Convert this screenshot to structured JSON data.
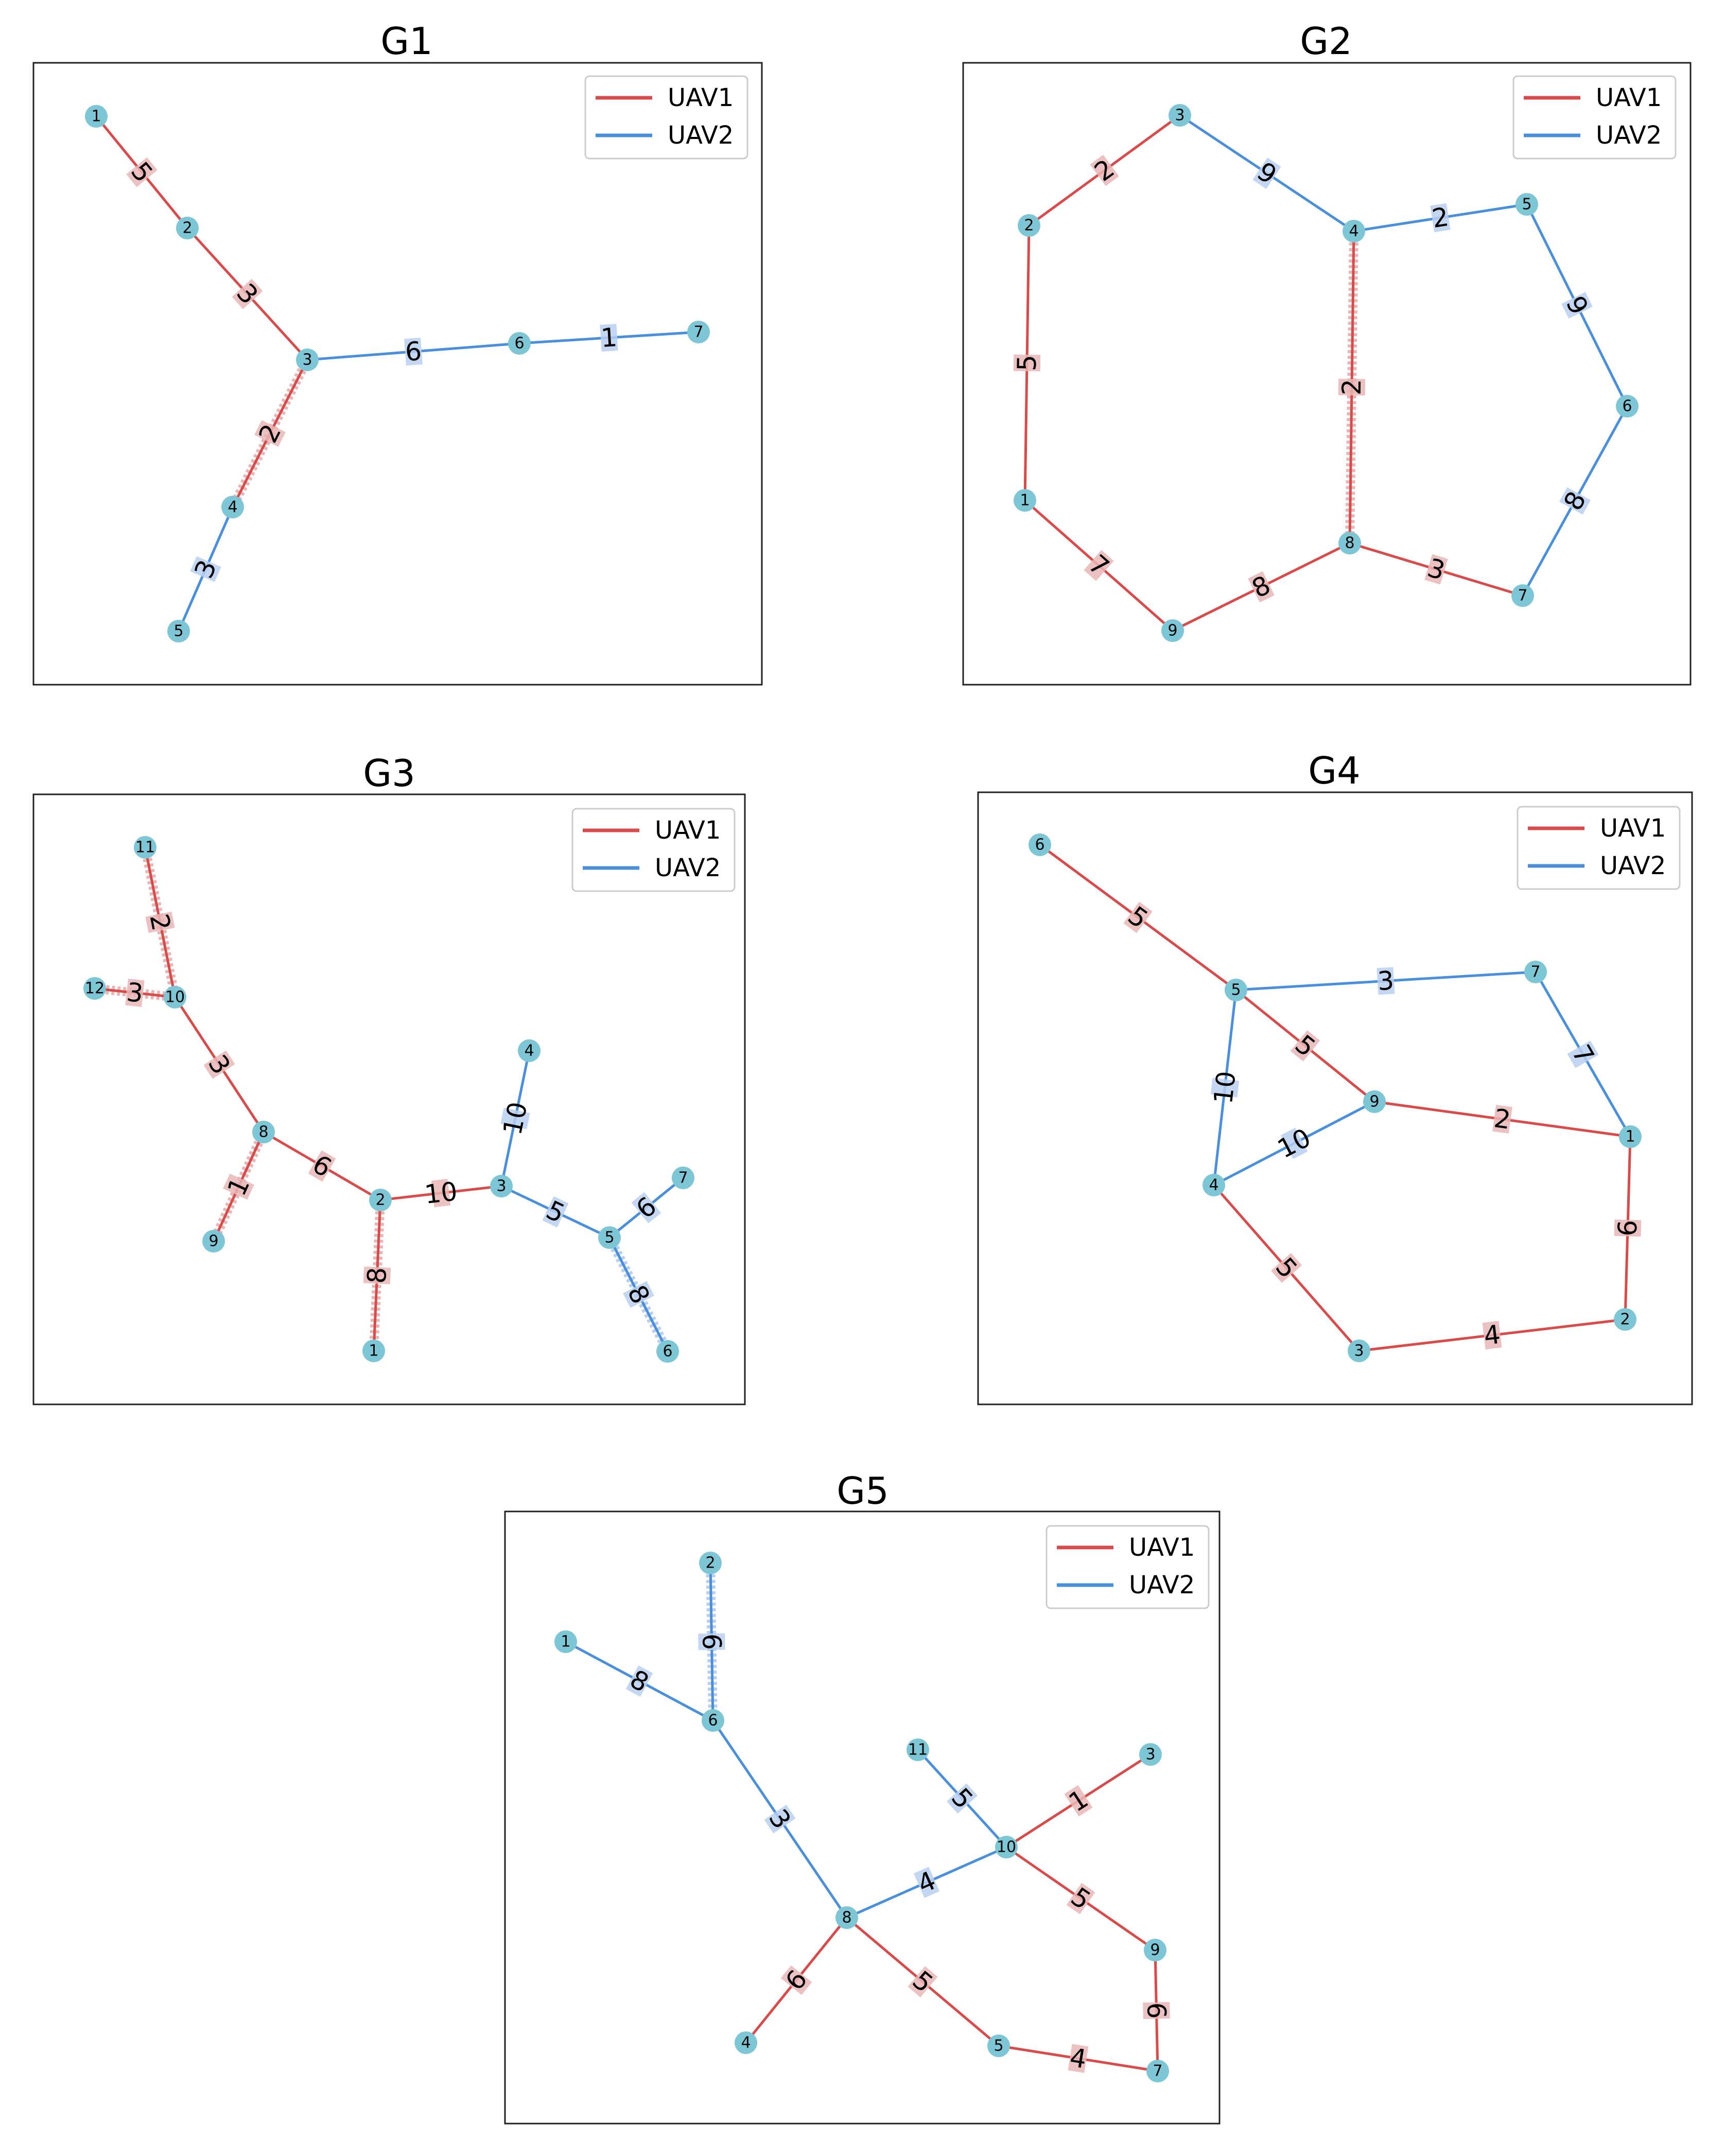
{
  "colors": {
    "uav1": "#d94b4b",
    "uav2": "#4a8fdc",
    "node": "#7cc6d6",
    "highlight_uav1": "#e9b6b6",
    "highlight_uav2": "#b8cff0"
  },
  "legend": {
    "uav1_label": "UAV1",
    "uav2_label": "UAV2"
  },
  "graphs": [
    {
      "title": "G1",
      "nodes": [
        {
          "id": "1"
        },
        {
          "id": "2"
        },
        {
          "id": "3"
        },
        {
          "id": "4"
        },
        {
          "id": "5"
        },
        {
          "id": "6"
        },
        {
          "id": "7"
        }
      ],
      "edges": [
        {
          "from": "1",
          "to": "2",
          "weight": "5",
          "uav": "uav1",
          "highlight": false
        },
        {
          "from": "2",
          "to": "3",
          "weight": "3",
          "uav": "uav1",
          "highlight": false
        },
        {
          "from": "3",
          "to": "6",
          "weight": "6",
          "uav": "uav2",
          "highlight": false
        },
        {
          "from": "6",
          "to": "7",
          "weight": "1",
          "uav": "uav2",
          "highlight": false
        },
        {
          "from": "3",
          "to": "4",
          "weight": "2",
          "uav": "uav1",
          "highlight": true
        },
        {
          "from": "4",
          "to": "5",
          "weight": "3",
          "uav": "uav2",
          "highlight": false
        }
      ]
    },
    {
      "title": "G2",
      "nodes": [
        {
          "id": "1"
        },
        {
          "id": "2"
        },
        {
          "id": "3"
        },
        {
          "id": "4"
        },
        {
          "id": "5"
        },
        {
          "id": "6"
        },
        {
          "id": "7"
        },
        {
          "id": "8"
        },
        {
          "id": "9"
        }
      ],
      "edges": [
        {
          "from": "2",
          "to": "3",
          "weight": "2",
          "uav": "uav1",
          "highlight": false
        },
        {
          "from": "3",
          "to": "4",
          "weight": "9",
          "uav": "uav2",
          "highlight": false
        },
        {
          "from": "4",
          "to": "5",
          "weight": "2",
          "uav": "uav2",
          "highlight": false
        },
        {
          "from": "5",
          "to": "6",
          "weight": "9",
          "uav": "uav2",
          "highlight": false
        },
        {
          "from": "6",
          "to": "7",
          "weight": "8",
          "uav": "uav2",
          "highlight": false
        },
        {
          "from": "2",
          "to": "1",
          "weight": "5",
          "uav": "uav1",
          "highlight": false
        },
        {
          "from": "1",
          "to": "9",
          "weight": "7",
          "uav": "uav1",
          "highlight": false
        },
        {
          "from": "9",
          "to": "8",
          "weight": "8",
          "uav": "uav1",
          "highlight": false
        },
        {
          "from": "8",
          "to": "7",
          "weight": "3",
          "uav": "uav1",
          "highlight": false
        },
        {
          "from": "4",
          "to": "8",
          "weight": "2",
          "uav": "uav1",
          "highlight": true
        }
      ]
    },
    {
      "title": "G3",
      "nodes": [
        {
          "id": "1"
        },
        {
          "id": "2"
        },
        {
          "id": "3"
        },
        {
          "id": "4"
        },
        {
          "id": "5"
        },
        {
          "id": "6"
        },
        {
          "id": "7"
        },
        {
          "id": "8"
        },
        {
          "id": "9"
        },
        {
          "id": "10"
        },
        {
          "id": "11"
        },
        {
          "id": "12"
        }
      ],
      "edges": [
        {
          "from": "11",
          "to": "10",
          "weight": "2",
          "uav": "uav1",
          "highlight": true
        },
        {
          "from": "12",
          "to": "10",
          "weight": "3",
          "uav": "uav1",
          "highlight": true
        },
        {
          "from": "10",
          "to": "8",
          "weight": "3",
          "uav": "uav1",
          "highlight": false
        },
        {
          "from": "8",
          "to": "9",
          "weight": "1",
          "uav": "uav1",
          "highlight": true
        },
        {
          "from": "8",
          "to": "2",
          "weight": "6",
          "uav": "uav1",
          "highlight": false
        },
        {
          "from": "2",
          "to": "1",
          "weight": "8",
          "uav": "uav1",
          "highlight": true
        },
        {
          "from": "2",
          "to": "3",
          "weight": "10",
          "uav": "uav1",
          "highlight": false
        },
        {
          "from": "3",
          "to": "4",
          "weight": "10",
          "uav": "uav2",
          "highlight": false
        },
        {
          "from": "3",
          "to": "5",
          "weight": "5",
          "uav": "uav2",
          "highlight": false
        },
        {
          "from": "5",
          "to": "7",
          "weight": "6",
          "uav": "uav2",
          "highlight": false
        },
        {
          "from": "5",
          "to": "6",
          "weight": "8",
          "uav": "uav2",
          "highlight": true
        }
      ]
    },
    {
      "title": "G4",
      "nodes": [
        {
          "id": "1"
        },
        {
          "id": "2"
        },
        {
          "id": "3"
        },
        {
          "id": "4"
        },
        {
          "id": "5"
        },
        {
          "id": "6"
        },
        {
          "id": "7"
        },
        {
          "id": "9"
        }
      ],
      "edges": [
        {
          "from": "6",
          "to": "5",
          "weight": "5",
          "uav": "uav1",
          "highlight": false
        },
        {
          "from": "5",
          "to": "7",
          "weight": "3",
          "uav": "uav2",
          "highlight": false
        },
        {
          "from": "7",
          "to": "1",
          "weight": "7",
          "uav": "uav2",
          "highlight": false
        },
        {
          "from": "5",
          "to": "9",
          "weight": "5",
          "uav": "uav1",
          "highlight": false
        },
        {
          "from": "9",
          "to": "1",
          "weight": "2",
          "uav": "uav1",
          "highlight": false
        },
        {
          "from": "5",
          "to": "4",
          "weight": "10",
          "uav": "uav2",
          "highlight": false
        },
        {
          "from": "4",
          "to": "9",
          "weight": "10",
          "uav": "uav2",
          "highlight": false
        },
        {
          "from": "1",
          "to": "2",
          "weight": "6",
          "uav": "uav1",
          "highlight": false
        },
        {
          "from": "4",
          "to": "3",
          "weight": "5",
          "uav": "uav1",
          "highlight": false
        },
        {
          "from": "3",
          "to": "2",
          "weight": "4",
          "uav": "uav1",
          "highlight": false
        }
      ]
    },
    {
      "title": "G5",
      "nodes": [
        {
          "id": "1"
        },
        {
          "id": "2"
        },
        {
          "id": "3"
        },
        {
          "id": "4"
        },
        {
          "id": "5"
        },
        {
          "id": "6"
        },
        {
          "id": "7"
        },
        {
          "id": "8"
        },
        {
          "id": "9"
        },
        {
          "id": "10"
        },
        {
          "id": "11"
        }
      ],
      "edges": [
        {
          "from": "2",
          "to": "6",
          "weight": "6",
          "uav": "uav2",
          "highlight": true
        },
        {
          "from": "1",
          "to": "6",
          "weight": "8",
          "uav": "uav2",
          "highlight": false
        },
        {
          "from": "6",
          "to": "8",
          "weight": "3",
          "uav": "uav2",
          "highlight": false
        },
        {
          "from": "8",
          "to": "10",
          "weight": "4",
          "uav": "uav2",
          "highlight": false
        },
        {
          "from": "11",
          "to": "10",
          "weight": "5",
          "uav": "uav2",
          "highlight": false
        },
        {
          "from": "10",
          "to": "3",
          "weight": "1",
          "uav": "uav1",
          "highlight": false
        },
        {
          "from": "10",
          "to": "9",
          "weight": "5",
          "uav": "uav1",
          "highlight": false
        },
        {
          "from": "9",
          "to": "7",
          "weight": "6",
          "uav": "uav1",
          "highlight": false
        },
        {
          "from": "5",
          "to": "7",
          "weight": "4",
          "uav": "uav1",
          "highlight": false
        },
        {
          "from": "8",
          "to": "5",
          "weight": "5",
          "uav": "uav1",
          "highlight": false
        },
        {
          "from": "8",
          "to": "4",
          "weight": "6",
          "uav": "uav1",
          "highlight": false
        }
      ]
    }
  ]
}
